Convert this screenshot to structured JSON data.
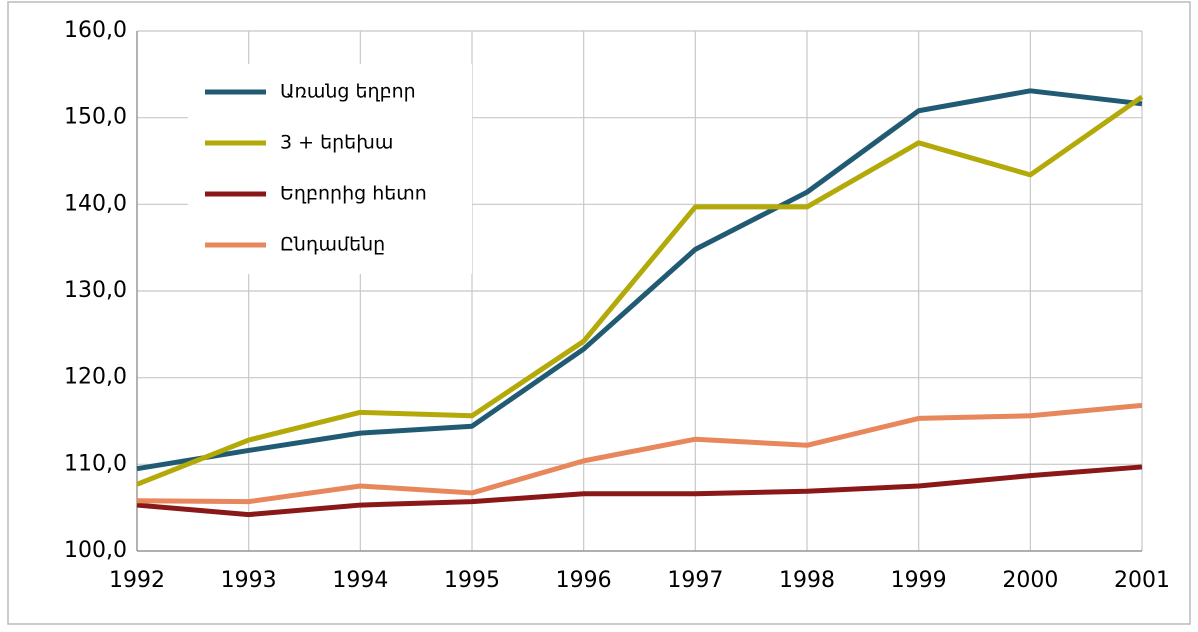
{
  "chart_data": {
    "type": "line",
    "categories": [
      "1992",
      "1993",
      "1994",
      "1995",
      "1996",
      "1997",
      "1998",
      "1999",
      "2000",
      "2001"
    ],
    "series": [
      {
        "name": "Առանց եղբոր",
        "color": "#215a73",
        "values": [
          109.5,
          111.6,
          113.6,
          114.4,
          123.3,
          134.8,
          141.4,
          150.8,
          153.1,
          151.6
        ]
      },
      {
        "name": "3 + երեխա",
        "color": "#b3aa0a",
        "values": [
          107.7,
          112.8,
          116.0,
          115.6,
          124.2,
          139.7,
          139.7,
          147.1,
          143.4,
          152.4
        ]
      },
      {
        "name": "Եղբորից հետո",
        "color": "#8a1818",
        "values": [
          105.3,
          104.2,
          105.3,
          105.7,
          106.6,
          106.6,
          106.9,
          107.5,
          108.7,
          109.7
        ]
      },
      {
        "name": "Ընդամենը",
        "color": "#e8875c",
        "values": [
          105.8,
          105.7,
          107.5,
          106.7,
          110.4,
          112.9,
          112.2,
          115.3,
          115.6,
          116.8
        ]
      }
    ],
    "ylim": [
      100,
      160
    ],
    "yticks": [
      {
        "value": 100,
        "label": "100,0"
      },
      {
        "value": 110,
        "label": "110,0"
      },
      {
        "value": 120,
        "label": "120,0"
      },
      {
        "value": 130,
        "label": "130,0"
      },
      {
        "value": 140,
        "label": "140,0"
      },
      {
        "value": 150,
        "label": "150,0"
      },
      {
        "value": 160,
        "label": "160,0"
      }
    ],
    "grid": true,
    "legend": "upper-left"
  }
}
